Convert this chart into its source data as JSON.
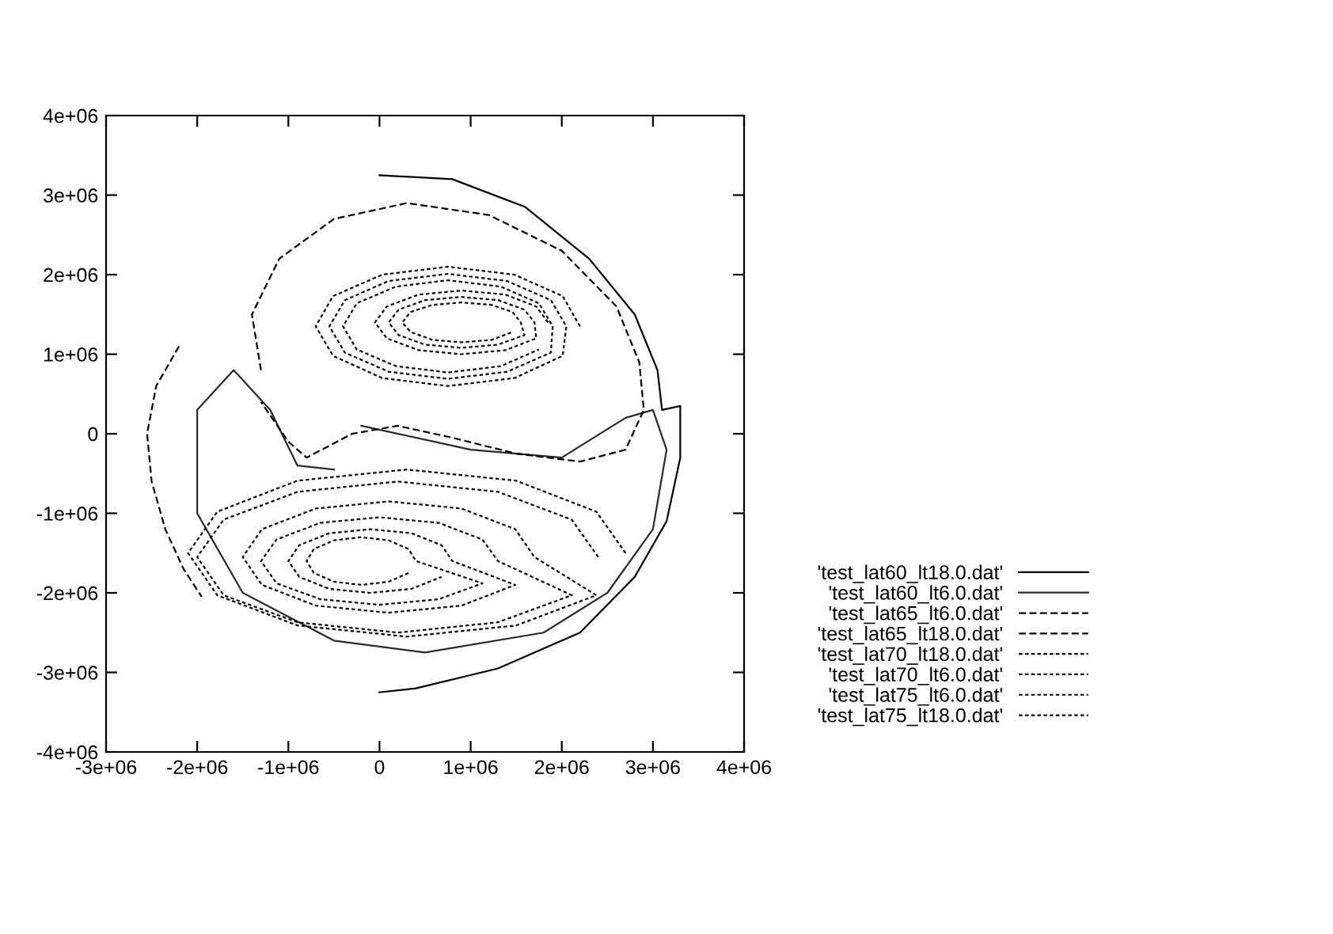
{
  "chart_data": {
    "type": "line",
    "xlim": [
      -3000000,
      4000000
    ],
    "ylim": [
      -4000000,
      4000000
    ],
    "xticks": [
      {
        "value": -3000000,
        "label": "-3e+06"
      },
      {
        "value": -2000000,
        "label": "-2e+06"
      },
      {
        "value": -1000000,
        "label": "-1e+06"
      },
      0,
      {
        "value": 1000000,
        "label": "1e+06"
      },
      {
        "value": 2000000,
        "label": "2e+06"
      },
      {
        "value": 3000000,
        "label": "3e+06"
      },
      {
        "value": 4000000,
        "label": "4e+06"
      }
    ],
    "yticks": [
      {
        "value": -4000000,
        "label": "-4e+06"
      },
      {
        "value": -3000000,
        "label": "-3e+06"
      },
      {
        "value": -2000000,
        "label": "-2e+06"
      },
      {
        "value": -1000000,
        "label": "-1e+06"
      },
      0,
      {
        "value": 1000000,
        "label": "1e+06"
      },
      {
        "value": 2000000,
        "label": "2e+06"
      },
      {
        "value": 3000000,
        "label": "3e+06"
      },
      {
        "value": 4000000,
        "label": "4e+06"
      }
    ],
    "grid": false,
    "legend": "right",
    "marker": "none",
    "series": [
      {
        "name": "'test_lat60_lt18.0.dat'",
        "color": "#000000",
        "line_style": "solid",
        "x": [
          0,
          800000,
          1600000,
          2300000,
          2800000,
          3050000,
          3100000,
          3300000,
          3300000,
          3150000,
          2800000,
          2200000,
          1300000,
          400000,
          0
        ],
        "values": [
          3250000,
          3200000,
          2850000,
          2200000,
          1500000,
          800000,
          300000,
          350000,
          -300000,
          -1100000,
          -1800000,
          -2500000,
          -2950000,
          -3200000,
          -3250000
        ]
      },
      {
        "name": "'test_lat60_lt6.0.dat'",
        "color": "#2a2a2a",
        "line_style": "solid",
        "x": [
          -200000,
          1000000,
          2000000,
          2700000,
          3000000,
          3150000,
          3000000,
          2500000,
          1800000,
          500000,
          -500000,
          -1500000,
          -2000000,
          -2000000,
          -1600000,
          -1200000,
          -900000,
          -500000
        ],
        "values": [
          100000,
          -200000,
          -300000,
          200000,
          300000,
          -200000,
          -1200000,
          -2000000,
          -2500000,
          -2750000,
          -2600000,
          -2000000,
          -1000000,
          300000,
          800000,
          300000,
          -400000,
          -450000
        ]
      },
      {
        "name": "'test_lat65_lt6.0.dat'",
        "color": "#020202",
        "line_style": "dashed",
        "x": [
          -1300000,
          -1400000,
          -1100000,
          -500000,
          300000,
          1200000,
          2000000,
          2600000,
          2850000,
          2900000,
          2700000,
          2200000,
          1500000,
          800000,
          200000,
          -300000,
          -800000,
          -1000000,
          -1300000
        ],
        "values": [
          800000,
          1500000,
          2200000,
          2700000,
          2900000,
          2750000,
          2300000,
          1600000,
          900000,
          300000,
          -200000,
          -350000,
          -250000,
          -50000,
          100000,
          0,
          -300000,
          -100000,
          400000
        ]
      },
      {
        "name": "'test_lat65_lt18.0.dat'",
        "color": "#030303",
        "line_style": "dashed",
        "x": [
          -2200000,
          -2450000,
          -2550000,
          -2500000,
          -2350000,
          -2150000,
          -1950000
        ],
        "values": [
          1100000,
          600000,
          0,
          -600000,
          -1200000,
          -1700000,
          -2050000
        ]
      },
      {
        "name": "'test_lat70_lt18.0.dat'",
        "color": "#040404",
        "line_style": "dotted",
        "x": [
          2200000,
          2010000,
          1480000,
          750000,
          30000,
          -510000,
          -700000,
          -510000,
          30000,
          750000,
          1480000,
          2010000,
          2050000,
          1880000,
          1400000,
          750000,
          100000,
          -380000,
          -550000,
          -380000,
          100000,
          750000,
          1400000,
          1880000,
          1900000,
          1750000,
          1330000,
          750000,
          180000,
          -250000,
          -400000,
          -250000,
          180000,
          750000,
          1330000,
          1750000
        ],
        "values": [
          1350000,
          1730000,
          2000000,
          2100000,
          2000000,
          1730000,
          1350000,
          980000,
          700000,
          600000,
          700000,
          980000,
          1350000,
          1680000,
          1920000,
          2010000,
          1920000,
          1680000,
          1350000,
          1020000,
          780000,
          690000,
          780000,
          1020000,
          1350000,
          1640000,
          1850000,
          1930000,
          1850000,
          1640000,
          1350000,
          1060000,
          850000,
          770000,
          850000,
          1060000
        ]
      },
      {
        "name": "'test_lat70_lt6.0.dat'",
        "color": "#050505",
        "line_style": "dotted",
        "x": [
          2700000,
          2380000,
          1500000,
          300000,
          -900000,
          -1780000,
          -2100000,
          -1780000,
          -900000,
          300000,
          1500000,
          2380000,
          1700000,
          1490000,
          900000,
          100000,
          -700000,
          -1290000,
          -1500000,
          -1290000,
          -700000,
          100000,
          900000,
          1490000,
          800000,
          680000,
          350000,
          -100000,
          -550000,
          -880000,
          -1000000,
          -880000,
          -550000,
          -100000,
          350000,
          680000
        ],
        "values": [
          -1500000,
          -980000,
          -590000,
          -450000,
          -590000,
          -980000,
          -1500000,
          -2030000,
          -2410000,
          -2550000,
          -2410000,
          -2030000,
          -1550000,
          -1200000,
          -940000,
          -850000,
          -940000,
          -1200000,
          -1550000,
          -1900000,
          -2160000,
          -2250000,
          -2160000,
          -1900000,
          -1600000,
          -1400000,
          -1250000,
          -1200000,
          -1250000,
          -1400000,
          -1600000,
          -1800000,
          -1950000,
          -2000000,
          -1950000,
          -1800000
        ]
      },
      {
        "name": "'test_lat75_lt6.0.dat'",
        "color": "#060606",
        "line_style": "dotted",
        "x": [
          1850000,
          1720000,
          1380000,
          900000,
          430000,
          80000,
          -50000,
          80000,
          430000,
          900000,
          1380000,
          1720000,
          1700000,
          1590000,
          1300000,
          900000,
          500000,
          210000,
          100000,
          210000,
          500000,
          900000,
          1300000,
          1590000,
          1550000,
          1460000,
          1230000,
          900000,
          580000,
          340000,
          250000,
          340000,
          580000,
          900000,
          1230000,
          1460000
        ],
        "values": [
          1400000,
          1600000,
          1750000,
          1800000,
          1750000,
          1600000,
          1400000,
          1200000,
          1050000,
          1000000,
          1050000,
          1200000,
          1400000,
          1560000,
          1680000,
          1720000,
          1680000,
          1560000,
          1400000,
          1240000,
          1120000,
          1080000,
          1120000,
          1240000,
          1400000,
          1530000,
          1620000,
          1650000,
          1620000,
          1530000,
          1400000,
          1280000,
          1180000,
          1150000,
          1180000,
          1280000
        ]
      },
      {
        "name": "'test_lat75_lt18.0.dat'",
        "color": "#070707",
        "line_style": "dotted",
        "x": [
          2400000,
          2110000,
          1300000,
          200000,
          -900000,
          -1710000,
          -2000000,
          -1710000,
          -900000,
          200000,
          1300000,
          2110000,
          1300000,
          1130000,
          650000,
          0,
          -650000,
          -1130000,
          -1300000,
          -1130000,
          -650000,
          0,
          650000,
          1130000,
          400000,
          320000,
          100000,
          -200000,
          -500000,
          -720000,
          -800000,
          -720000,
          -500000,
          -200000,
          100000,
          320000
        ],
        "values": [
          -1550000,
          -1080000,
          -730000,
          -600000,
          -730000,
          -1080000,
          -1550000,
          -2030000,
          -2370000,
          -2500000,
          -2370000,
          -2030000,
          -1600000,
          -1330000,
          -1120000,
          -1050000,
          -1120000,
          -1330000,
          -1600000,
          -1880000,
          -2080000,
          -2150000,
          -2080000,
          -1880000,
          -1600000,
          -1450000,
          -1340000,
          -1300000,
          -1340000,
          -1450000,
          -1600000,
          -1750000,
          -1860000,
          -1900000,
          -1860000,
          -1750000
        ]
      }
    ]
  }
}
